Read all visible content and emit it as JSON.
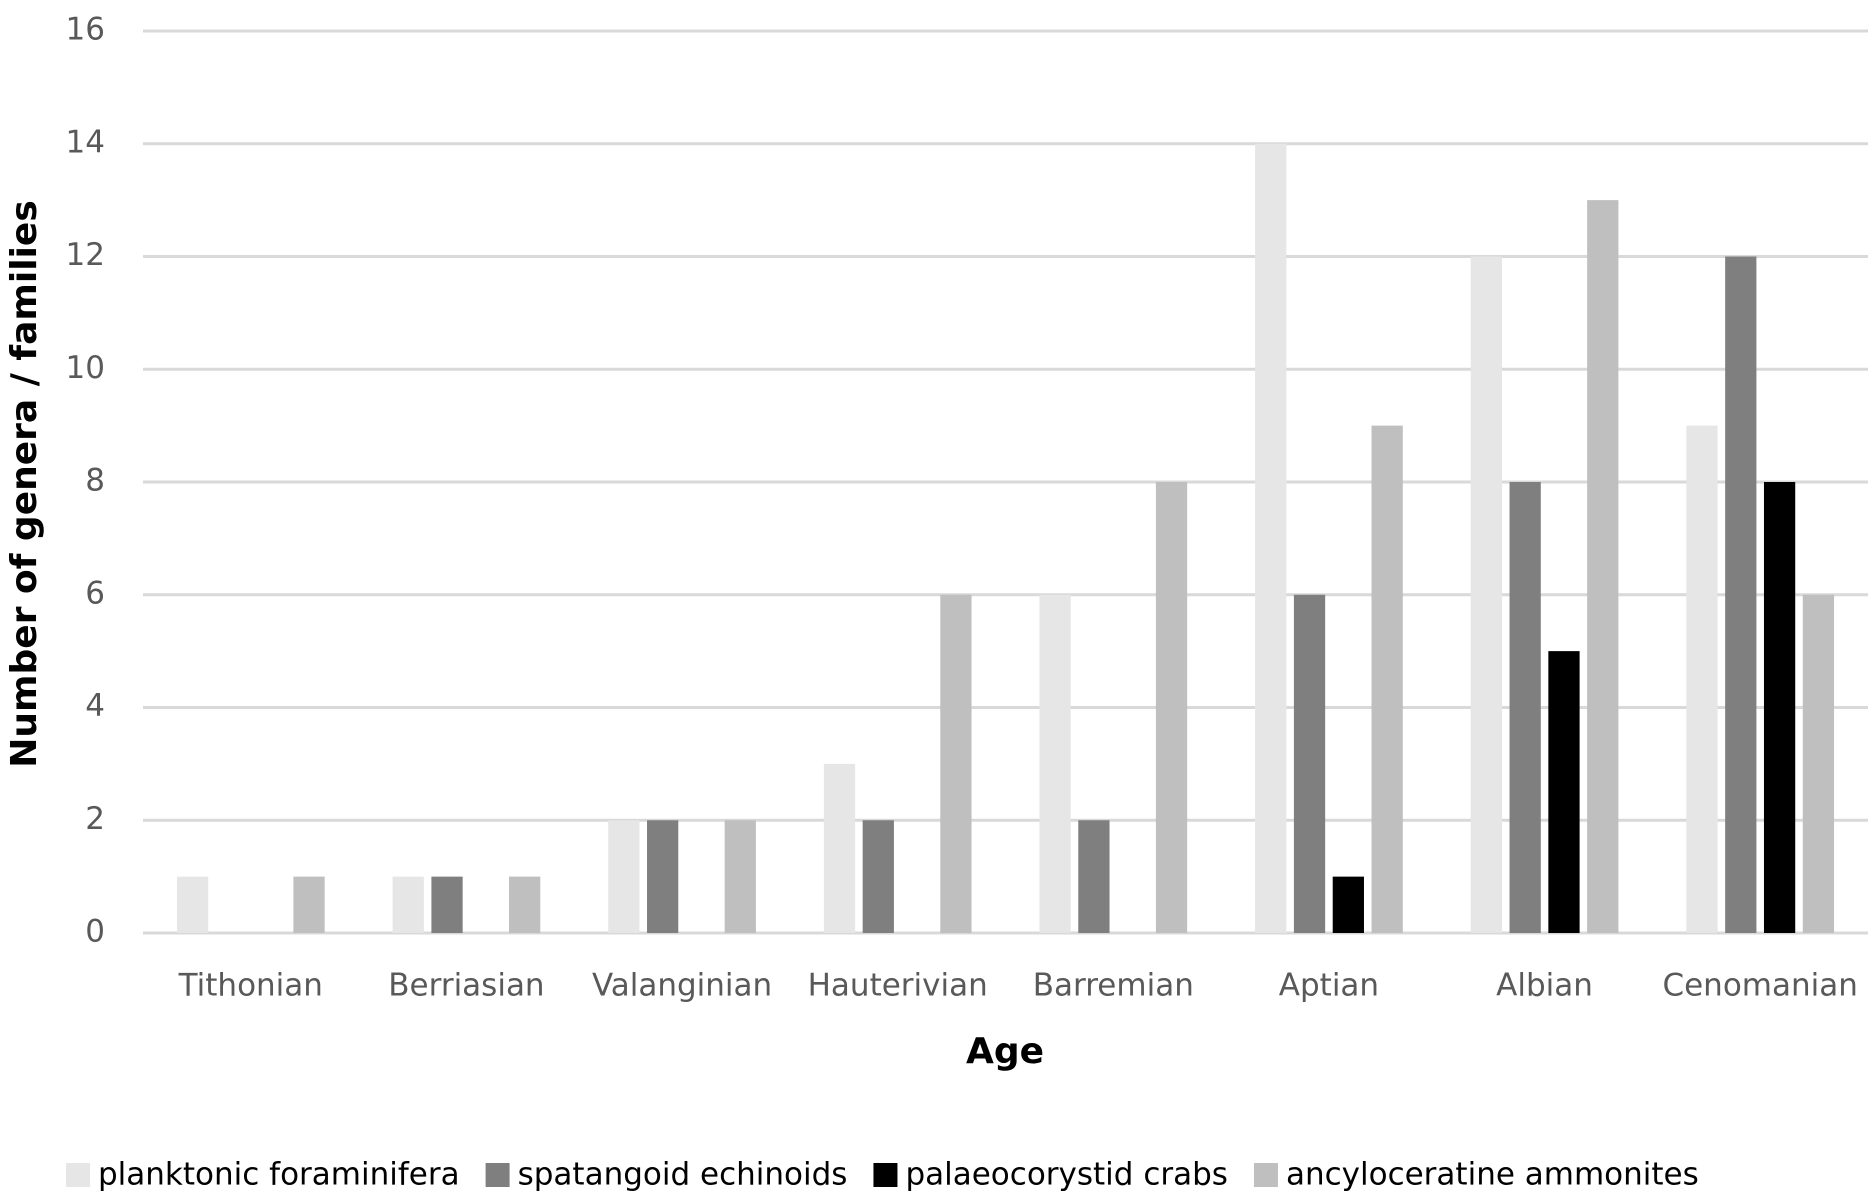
{
  "chart_data": {
    "type": "bar",
    "x_label": "Age",
    "y_label": "Number of genera / families",
    "categories": [
      "Tithonian",
      "Berriasian",
      "Valanginian",
      "Hauterivian",
      "Barremian",
      "Aptian",
      "Albian",
      "Cenomanian"
    ],
    "series": [
      {
        "name": "planktonic foraminifera",
        "color": "#e6e6e6",
        "values": [
          1,
          1,
          2,
          3,
          6,
          14,
          12,
          9
        ]
      },
      {
        "name": "spatangoid echinoids",
        "color": "#7f7f7f",
        "values": [
          0,
          1,
          2,
          2,
          2,
          6,
          8,
          12
        ]
      },
      {
        "name": "palaeocorystid crabs",
        "color": "#000000",
        "values": [
          0,
          0,
          0,
          0,
          0,
          1,
          5,
          8
        ]
      },
      {
        "name": "ancyloceratine ammonites",
        "color": "#bfbfbf",
        "values": [
          1,
          1,
          2,
          6,
          8,
          9,
          13,
          6
        ]
      }
    ],
    "ylim": [
      0,
      16
    ],
    "yticks": [
      0,
      2,
      4,
      6,
      8,
      10,
      12,
      14,
      16
    ],
    "grid": true,
    "legend": "bottom"
  }
}
